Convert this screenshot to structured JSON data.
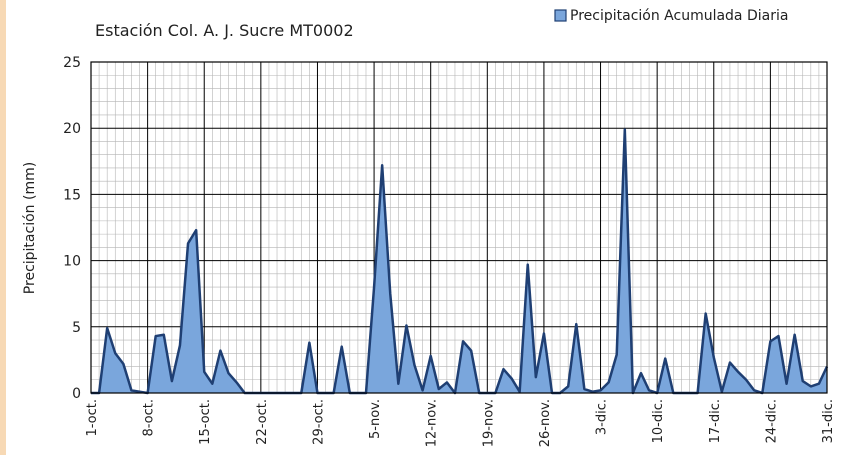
{
  "chart_data": {
    "type": "area",
    "title": "Estación Col. A.  J. Sucre MT0002",
    "y_label": "Precipitación (mm)",
    "categories": [
      "1-oct.",
      null,
      null,
      null,
      null,
      null,
      null,
      "8-oct.",
      null,
      null,
      null,
      null,
      null,
      null,
      "15-oct.",
      null,
      null,
      null,
      null,
      null,
      null,
      "22-oct.",
      null,
      null,
      null,
      null,
      null,
      null,
      "29-oct.",
      null,
      null,
      null,
      null,
      null,
      null,
      "5-nov.",
      null,
      null,
      null,
      null,
      null,
      null,
      "12-nov.",
      null,
      null,
      null,
      null,
      null,
      null,
      "19-nov.",
      null,
      null,
      null,
      null,
      null,
      null,
      "26-nov.",
      null,
      null,
      null,
      null,
      null,
      null,
      "3-dic.",
      null,
      null,
      null,
      null,
      null,
      null,
      "10-dic.",
      null,
      null,
      null,
      null,
      null,
      null,
      "17-dic.",
      null,
      null,
      null,
      null,
      null,
      null,
      "24-dic.",
      null,
      null,
      null,
      null,
      null,
      null,
      "31-dic."
    ],
    "series": [
      {
        "name": "Precipitación Acumulada Diaria",
        "color": "#7aa6dc",
        "line_color": "#1f3f73",
        "values": [
          0,
          0,
          4.9,
          3.0,
          2.2,
          0.2,
          0.1,
          0,
          4.3,
          4.4,
          0.9,
          3.6,
          11.3,
          12.3,
          1.6,
          0.7,
          3.2,
          1.5,
          0.8,
          0,
          0,
          0,
          0,
          0,
          0,
          0,
          0,
          3.8,
          0,
          0,
          0,
          3.5,
          0,
          0,
          0,
          8,
          17.2,
          7.5,
          0.7,
          5.1,
          2.1,
          0.2,
          2.8,
          0.3,
          0.8,
          0,
          3.9,
          3.2,
          0,
          0,
          0,
          1.8,
          1.1,
          0.1,
          9.7,
          1.2,
          4.5,
          0,
          0,
          0.5,
          5.2,
          0.3,
          0.1,
          0.2,
          0.8,
          2.9,
          19.9,
          0,
          1.5,
          0.2,
          0,
          2.6,
          0,
          0,
          0,
          0,
          6.0,
          2.7,
          0.1,
          2.3,
          1.6,
          1.0,
          0.2,
          0,
          3.9,
          4.3,
          0.7,
          4.4,
          0.9,
          0.5,
          0.7,
          2.0
        ]
      }
    ],
    "ylim": [
      0,
      25
    ],
    "yticks": [
      0,
      5,
      10,
      15,
      20,
      25
    ],
    "grid": true,
    "legend": "top-right"
  }
}
